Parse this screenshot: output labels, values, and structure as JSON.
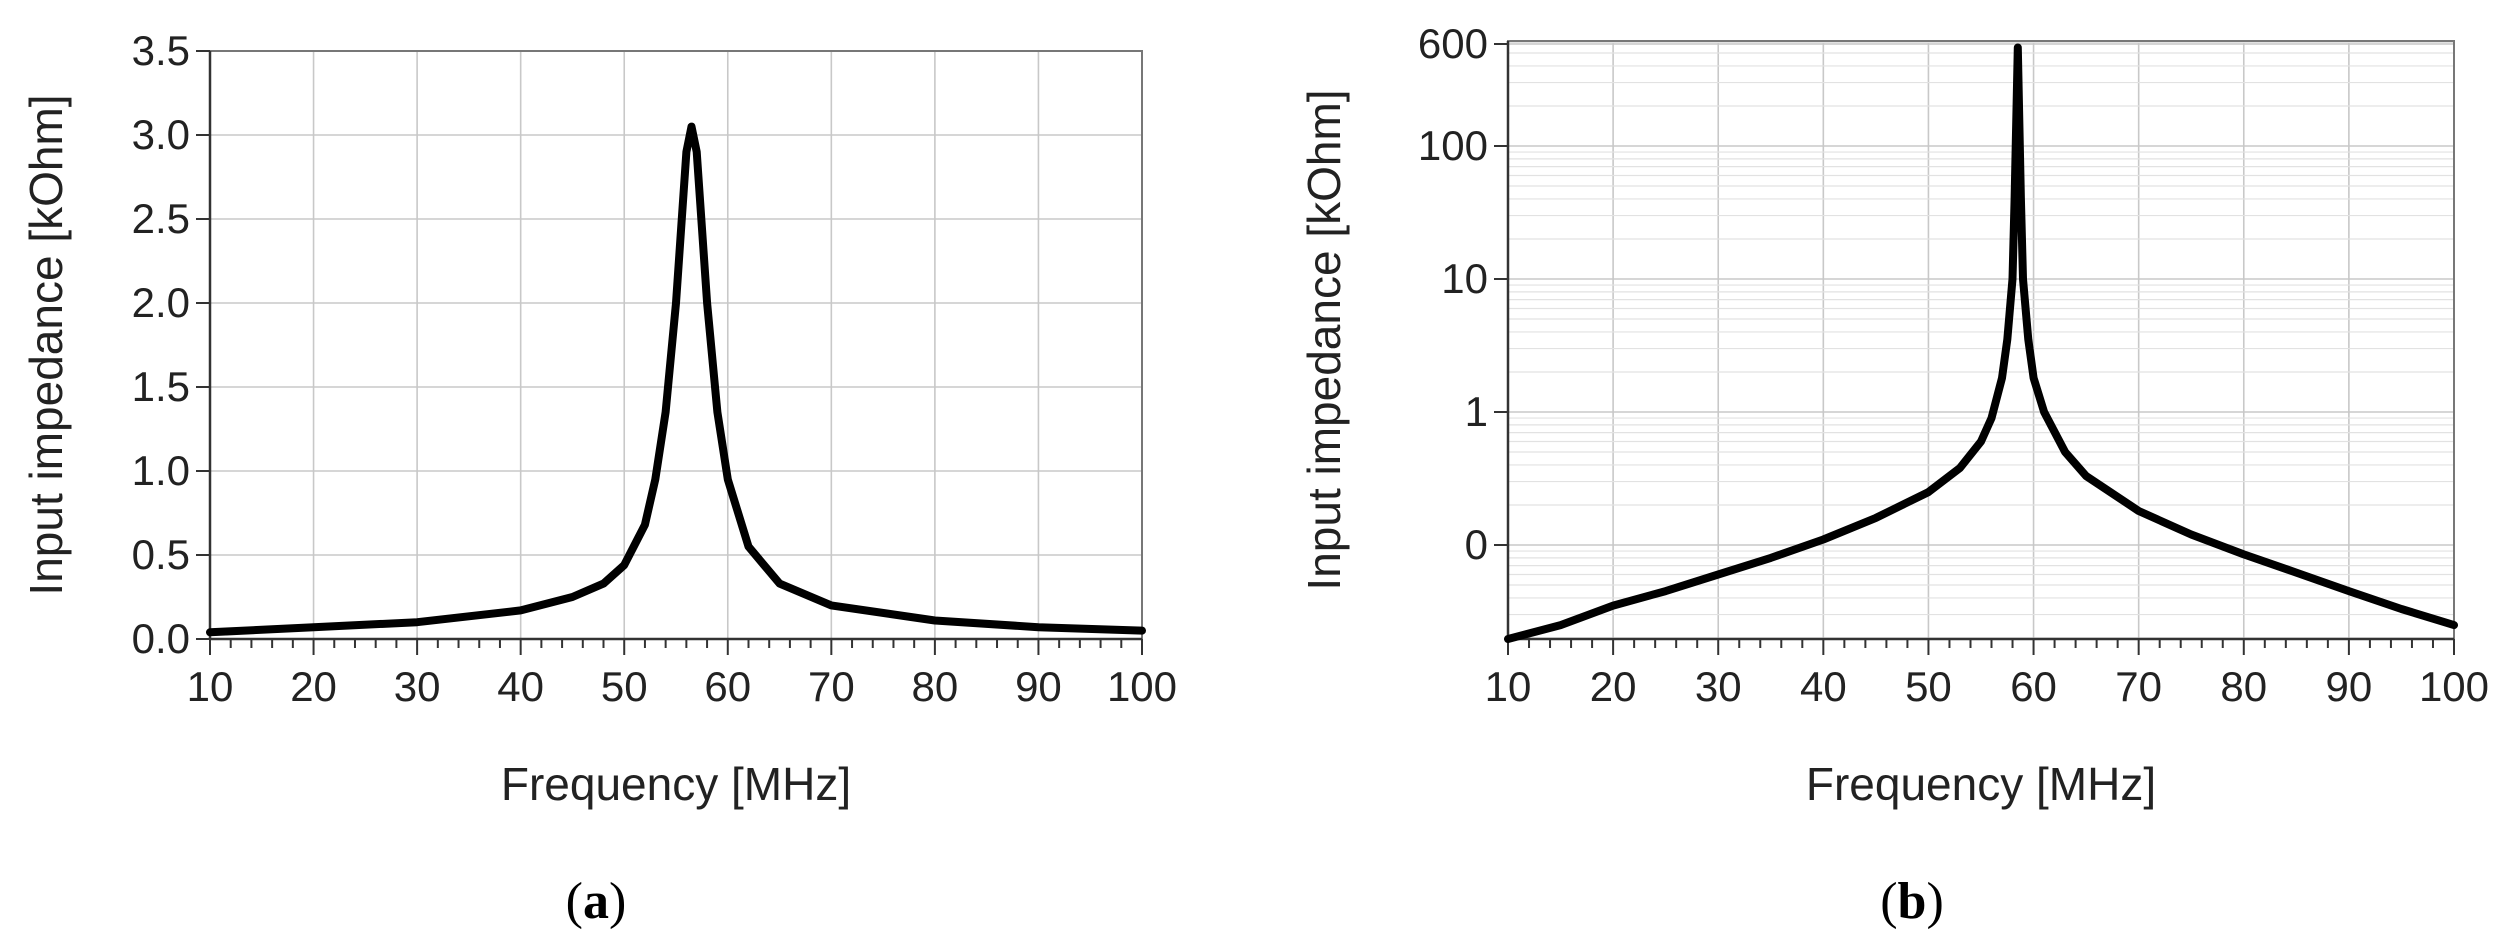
{
  "chart_data": [
    {
      "type": "line",
      "panel_label": "a",
      "xlabel": "Frequency [MHz]",
      "ylabel": "Input impedance [kOhm]",
      "xlim": [
        10,
        100
      ],
      "ylim": [
        0,
        3.5
      ],
      "x_ticks": [
        "10",
        "20",
        "30",
        "40",
        "50",
        "60",
        "70",
        "80",
        "90",
        "100"
      ],
      "y_ticks": [
        "0.0",
        "0.5",
        "1.0",
        "1.5",
        "2.0",
        "2.5",
        "3.0",
        "3.5"
      ],
      "y_scale": "linear",
      "grid": true,
      "series": [
        {
          "x": [
            10,
            20,
            30,
            40,
            45,
            48,
            50,
            52,
            53,
            54,
            55,
            55.5,
            56,
            56.5,
            57,
            57.5,
            58,
            59,
            60,
            62,
            65,
            70,
            80,
            90,
            100
          ],
          "y": [
            0.04,
            0.07,
            0.1,
            0.17,
            0.25,
            0.33,
            0.44,
            0.68,
            0.95,
            1.35,
            2.0,
            2.45,
            2.9,
            3.05,
            2.9,
            2.45,
            2.0,
            1.35,
            0.95,
            0.55,
            0.33,
            0.2,
            0.11,
            0.07,
            0.05
          ]
        }
      ]
    },
    {
      "type": "line",
      "panel_label": "b",
      "xlabel": "Frequency [MHz]",
      "ylabel": "Input impedance [kOhm]",
      "xlim": [
        10,
        100
      ],
      "x_ticks": [
        "10",
        "20",
        "30",
        "40",
        "50",
        "60",
        "70",
        "80",
        "90",
        "100"
      ],
      "y_ticks": [
        "0",
        "1",
        "10",
        "100",
        "600"
      ],
      "y_scale": "log",
      "grid": true,
      "series": [
        {
          "x": [
            10,
            15,
            20,
            25,
            30,
            35,
            40,
            45,
            50,
            53,
            55,
            56,
            57,
            57.5,
            58,
            58.2,
            58.5,
            58.8,
            59,
            59.5,
            60,
            61,
            63,
            65,
            70,
            75,
            80,
            85,
            90,
            95,
            100
          ],
          "y": [
            0.015,
            0.025,
            0.035,
            0.045,
            0.06,
            0.08,
            0.11,
            0.16,
            0.25,
            0.38,
            0.6,
            0.9,
            1.8,
            3.5,
            10,
            40,
            550,
            40,
            10,
            3.5,
            1.8,
            1.0,
            0.5,
            0.33,
            0.18,
            0.12,
            0.085,
            0.062,
            0.045,
            0.033,
            0.025
          ]
        }
      ]
    }
  ]
}
